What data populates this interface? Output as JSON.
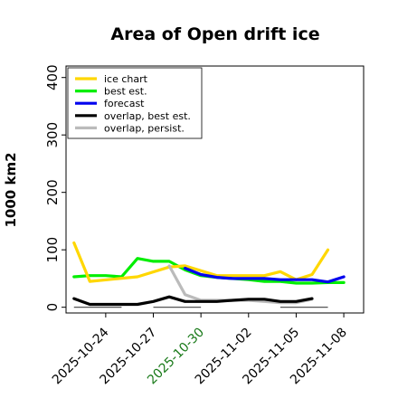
{
  "chart_data": {
    "type": "line",
    "title": "Area of Open drift ice",
    "xlabel": "",
    "ylabel": "1000 km2",
    "ylim": [
      -10,
      420
    ],
    "yticks": [
      0,
      100,
      200,
      300,
      400
    ],
    "x": [
      "2025-10-22",
      "2025-10-23",
      "2025-10-24",
      "2025-10-25",
      "2025-10-26",
      "2025-10-27",
      "2025-10-28",
      "2025-10-29",
      "2025-10-30",
      "2025-10-31",
      "2025-11-01",
      "2025-11-02",
      "2025-11-03",
      "2025-11-04",
      "2025-11-05",
      "2025-11-06",
      "2025-11-07",
      "2025-11-08"
    ],
    "xticks": [
      {
        "label": "2025-10-24",
        "color": "#000000"
      },
      {
        "label": "2025-10-27",
        "color": "#000000"
      },
      {
        "label": "2025-10-30",
        "color": "#1a7a1a"
      },
      {
        "label": "2025-11-02",
        "color": "#000000"
      },
      {
        "label": "2025-11-05",
        "color": "#000000"
      },
      {
        "label": "2025-11-08",
        "color": "#000000"
      }
    ],
    "series": [
      {
        "name": "ice chart",
        "color": "#ffd700",
        "values": [
          112,
          45,
          null,
          null,
          53,
          null,
          70,
          72,
          null,
          55,
          null,
          null,
          55,
          62,
          48,
          57,
          100,
          null
        ]
      },
      {
        "name": "best est.",
        "color": "#00ee00",
        "values": [
          53,
          55,
          55,
          53,
          85,
          80,
          80,
          65,
          55,
          52,
          50,
          48,
          45,
          45,
          42,
          42,
          43,
          43
        ]
      },
      {
        "name": "forecast",
        "color": "#0000ee",
        "values": [
          null,
          null,
          null,
          null,
          null,
          null,
          null,
          68,
          57,
          52,
          50,
          50,
          50,
          48,
          48,
          48,
          44,
          53
        ]
      },
      {
        "name": "overlap, best est.",
        "color": "#000000",
        "values": [
          15,
          5,
          5,
          5,
          5,
          10,
          18,
          10,
          10,
          10,
          12,
          14,
          14,
          10,
          10,
          15,
          null,
          null
        ]
      },
      {
        "name": "overlap, persist.",
        "color": "#bbbbbb",
        "values": [
          null,
          null,
          null,
          null,
          null,
          null,
          72,
          22,
          12,
          12,
          12,
          12,
          10,
          8,
          8,
          14,
          null,
          null
        ]
      }
    ],
    "reference_lines": [
      {
        "value": 0,
        "segments": [
          [
            "2025-10-22",
            "2025-10-25"
          ],
          [
            "2025-10-27",
            "2025-10-30"
          ],
          [
            "2025-11-04",
            "2025-11-07"
          ]
        ],
        "color": "#555555"
      }
    ],
    "legend_position": "top-left",
    "grid": false
  }
}
